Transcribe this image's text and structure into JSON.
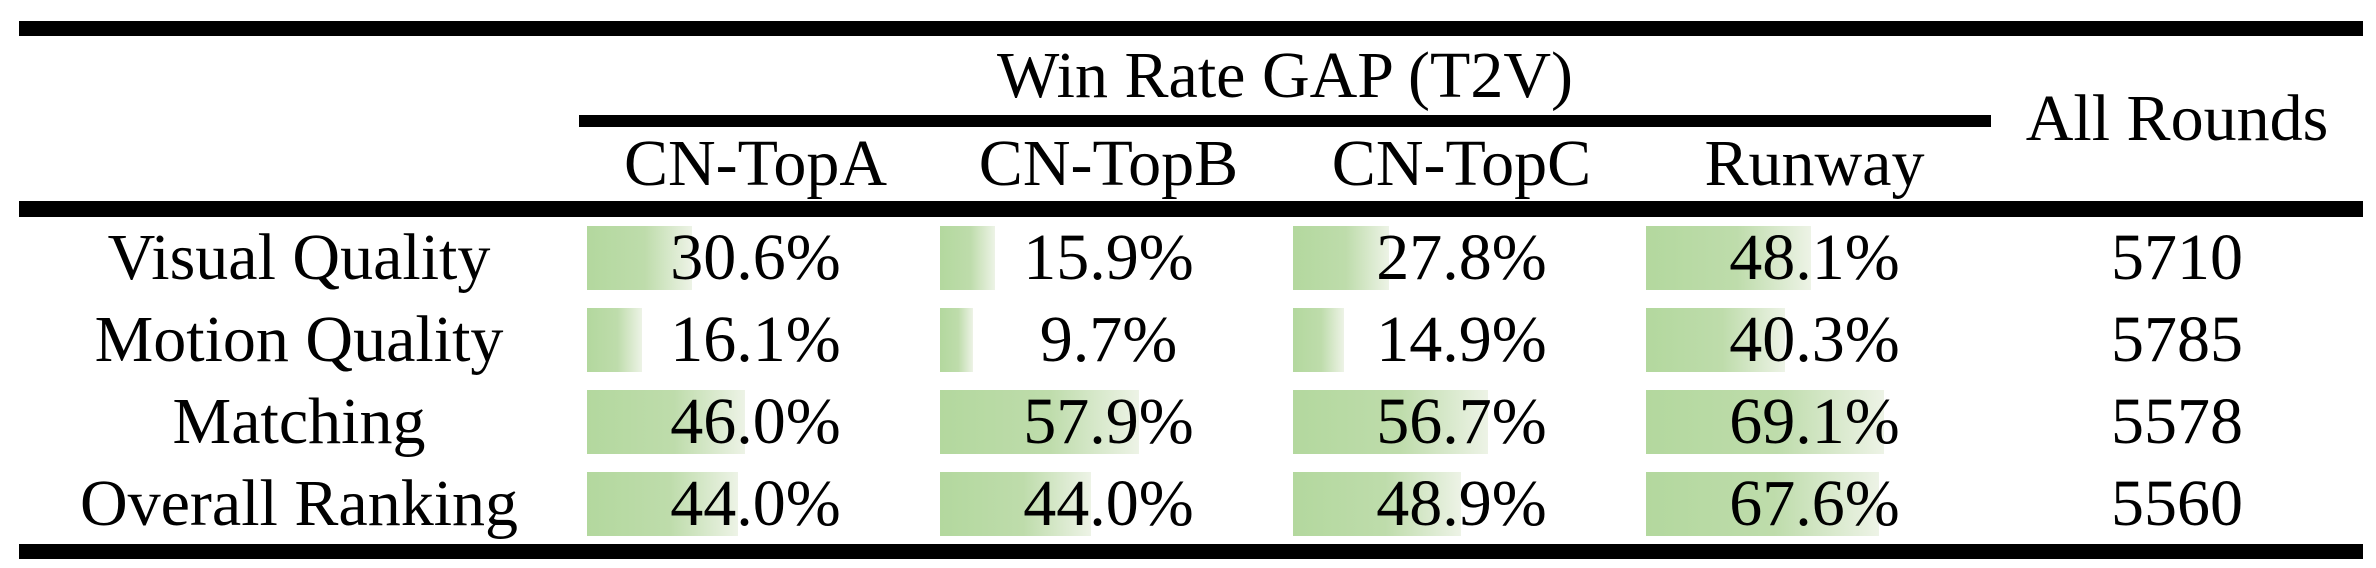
{
  "table": {
    "header": {
      "group_title": "Win Rate GAP (T2V)",
      "columns": [
        "CN-TopA",
        "CN-TopB",
        "CN-TopC",
        "Runway"
      ],
      "all_rounds_label": "All Rounds"
    },
    "rows": [
      {
        "label": "Visual Quality",
        "cells": [
          {
            "text": "30.6%",
            "value": 30.6
          },
          {
            "text": "15.9%",
            "value": 15.9
          },
          {
            "text": "27.8%",
            "value": 27.8
          },
          {
            "text": "48.1%",
            "value": 48.1
          }
        ],
        "all_rounds": "5710"
      },
      {
        "label": "Motion Quality",
        "cells": [
          {
            "text": "16.1%",
            "value": 16.1
          },
          {
            "text": "9.7%",
            "value": 9.7
          },
          {
            "text": "14.9%",
            "value": 14.9
          },
          {
            "text": "40.3%",
            "value": 40.3
          }
        ],
        "all_rounds": "5785"
      },
      {
        "label": "Matching",
        "cells": [
          {
            "text": "46.0%",
            "value": 46.0
          },
          {
            "text": "57.9%",
            "value": 57.9
          },
          {
            "text": "56.7%",
            "value": 56.7
          },
          {
            "text": "69.1%",
            "value": 69.1
          }
        ],
        "all_rounds": "5578"
      },
      {
        "label": "Overall Ranking",
        "cells": [
          {
            "text": "44.0%",
            "value": 44.0
          },
          {
            "text": "44.0%",
            "value": 44.0
          },
          {
            "text": "48.9%",
            "value": 48.9
          },
          {
            "text": "67.6%",
            "value": 67.6
          }
        ],
        "all_rounds": "5560"
      }
    ],
    "colors": {
      "bar_green": "#b3d89e",
      "bar_fade": "#edf3e6",
      "rule_black": "#000000"
    }
  },
  "chart_data": {
    "type": "table",
    "title": "Win Rate GAP (T2V)",
    "categories": [
      "Visual Quality",
      "Motion Quality",
      "Matching",
      "Overall Ranking"
    ],
    "series": [
      {
        "name": "CN-TopA",
        "values": [
          30.6,
          16.1,
          46.0,
          44.0
        ],
        "unit": "%"
      },
      {
        "name": "CN-TopB",
        "values": [
          15.9,
          9.7,
          57.9,
          44.0
        ],
        "unit": "%"
      },
      {
        "name": "CN-TopC",
        "values": [
          27.8,
          14.9,
          56.7,
          48.9
        ],
        "unit": "%"
      },
      {
        "name": "Runway",
        "values": [
          48.1,
          40.3,
          69.1,
          67.6
        ],
        "unit": "%"
      },
      {
        "name": "All Rounds",
        "values": [
          5710,
          5785,
          5578,
          5560
        ],
        "unit": "rounds"
      }
    ],
    "layout": "in-cell horizontal bars scaled 0-100% behind percentage labels"
  }
}
